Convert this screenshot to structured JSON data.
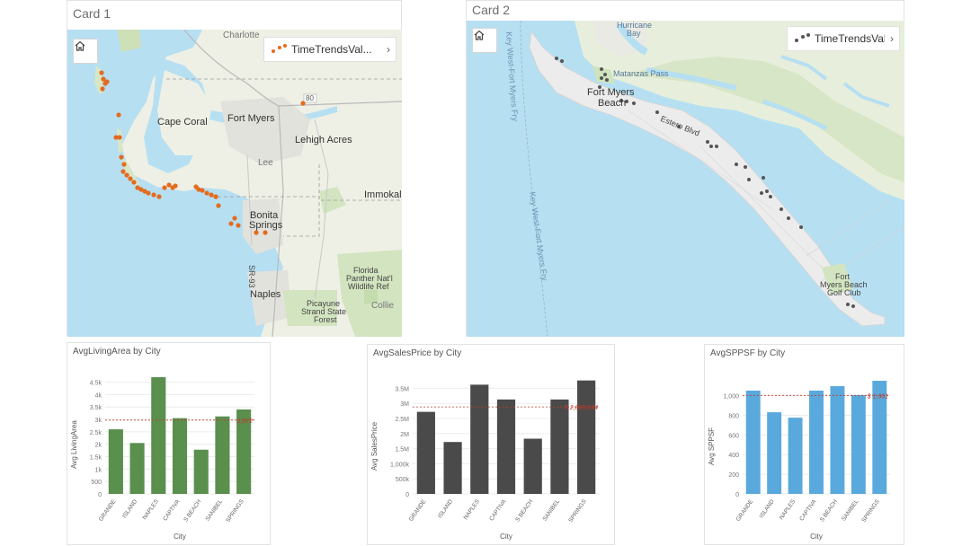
{
  "cards": [
    {
      "title": "Card 1",
      "legend_label": "TimeTrendsVal...",
      "point_color": "#e46b1e"
    },
    {
      "title": "Card 2",
      "legend_label": "TimeTrendsVal...",
      "point_color": "#555555"
    }
  ],
  "map1": {
    "labels": {
      "charlotte": "Charlotte",
      "cape_coral": "Cape Coral",
      "fort_myers": "Fort Myers",
      "lehigh": "Lehigh Acres",
      "lee": "Lee",
      "immokal": "Immokal",
      "bonita1": "Bonita",
      "bonita2": "Springs",
      "sr93": "SR-93",
      "naples": "Naples",
      "florida1": "Florida",
      "florida2": "Panther Nat'l",
      "florida3": "Wildlife Ref",
      "picayune1": "Picayune",
      "picayune2": "Strand State",
      "picayune3": "Forest",
      "collie": "Collie",
      "route80": "80"
    }
  },
  "map2": {
    "labels": {
      "hurricane1": "Hurricane",
      "hurricane2": "Bay",
      "matanzas": "Matanzas Pass",
      "fmb1": "Fort Myers",
      "fmb2": "Beach",
      "estero": "Estero Blvd",
      "ferry1": "Key West-Fort Myers Fry",
      "ferry2": "Key West-Fort Myers Fry",
      "golf1": "Fort",
      "golf2": "Myers Beach",
      "golf3": "Golf Club"
    }
  },
  "charts": [
    {
      "title": "AvgLivingArea by City",
      "xlabel": "City",
      "ylabel": "Avg LivingArea",
      "color": "#5a8f4e",
      "ref_label": "2,972",
      "ref_value": 2972,
      "ymax": 4700,
      "ticks": [
        {
          "v": 0,
          "t": "0"
        },
        {
          "v": 500,
          "t": "500"
        },
        {
          "v": 1000,
          "t": "1k"
        },
        {
          "v": 1500,
          "t": "1.5k"
        },
        {
          "v": 2000,
          "t": "2k"
        },
        {
          "v": 2500,
          "t": "2.5k"
        },
        {
          "v": 3000,
          "t": "3k"
        },
        {
          "v": 3500,
          "t": "3.5k"
        },
        {
          "v": 4000,
          "t": "4k"
        },
        {
          "v": 4500,
          "t": "4.5k"
        }
      ],
      "categories": [
        "GRANDE",
        "ISLAND",
        "NAPLES",
        "CAPTIVA",
        "S BEACH",
        "SANIBEL",
        "SPRINGS"
      ],
      "values": [
        2600,
        2050,
        4700,
        3050,
        1780,
        3120,
        3400
      ]
    },
    {
      "title": "AvgSalesPrice by City",
      "xlabel": "City",
      "ylabel": "Avg SalesPrice",
      "color": "#4a4a4a",
      "ref_label": "$ 2,883,694",
      "ref_value": 2883694,
      "ymax": 3750000,
      "ticks": [
        {
          "v": 0,
          "t": "0"
        },
        {
          "v": 500000,
          "t": "500k"
        },
        {
          "v": 1000000,
          "t": "1,000k"
        },
        {
          "v": 1500000,
          "t": "1.5M"
        },
        {
          "v": 2000000,
          "t": "2M"
        },
        {
          "v": 2500000,
          "t": "2.5M"
        },
        {
          "v": 3000000,
          "t": "3M"
        },
        {
          "v": 3500000,
          "t": "3.5M"
        }
      ],
      "categories": [
        "GRANDE",
        "ISLAND",
        "NAPLES",
        "CAPTIVA",
        "S BEACH",
        "SANIBEL",
        "SPRINGS"
      ],
      "values": [
        2720000,
        1720000,
        3620000,
        3130000,
        1830000,
        3130000,
        3760000
      ]
    },
    {
      "title": "AvgSPPSF by City",
      "xlabel": "City",
      "ylabel": "Avg SPPSF",
      "color": "#5aa9dc",
      "ref_label": "$ 1,001",
      "ref_value": 1001,
      "ymax": 1150,
      "ticks": [
        {
          "v": 0,
          "t": "0"
        },
        {
          "v": 200,
          "t": "200"
        },
        {
          "v": 400,
          "t": "400"
        },
        {
          "v": 600,
          "t": "600"
        },
        {
          "v": 800,
          "t": "800"
        },
        {
          "v": 1000,
          "t": "1,000"
        }
      ],
      "categories": [
        "GRANDE",
        "ISLAND",
        "NAPLES",
        "CAPTIVA",
        "S BEACH",
        "SANIBEL",
        "SPRINGS"
      ],
      "values": [
        1050,
        830,
        775,
        1050,
        1095,
        1005,
        1150
      ]
    }
  ]
}
